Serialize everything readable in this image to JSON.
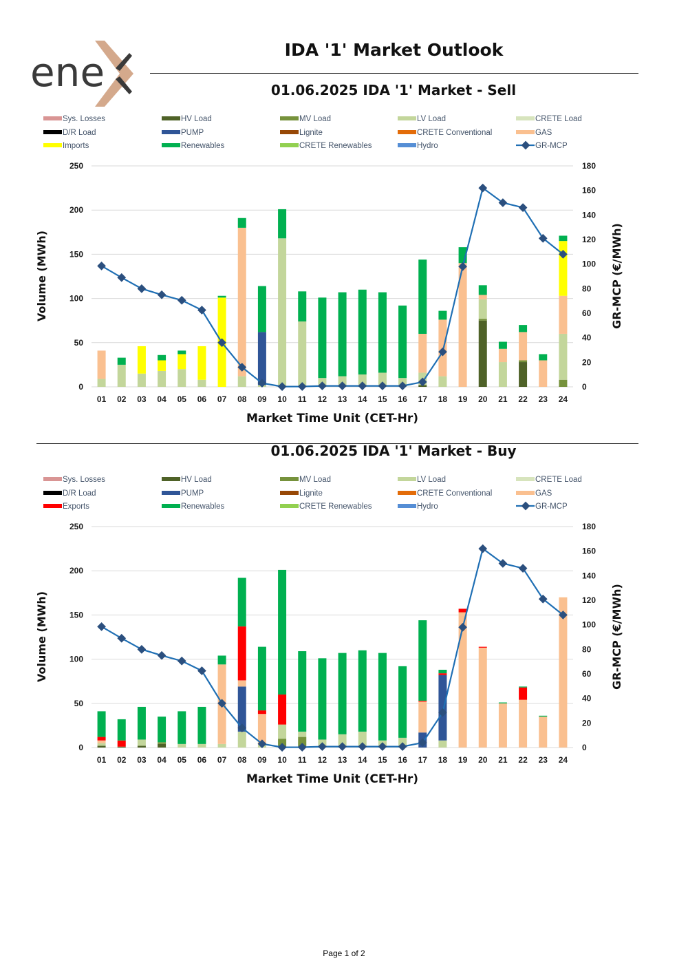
{
  "header": {
    "logo_text": "ene",
    "title": "IDA '1' Market Outlook"
  },
  "footer": {
    "page": "Page 1 of 2"
  },
  "legend_items": [
    {
      "key": "sys",
      "label": "Sys. Losses",
      "color": "#d99594"
    },
    {
      "key": "hv",
      "label": "HV Load",
      "color": "#4f6228"
    },
    {
      "key": "mv",
      "label": "MV Load",
      "color": "#76923c"
    },
    {
      "key": "lv",
      "label": "LV Load",
      "color": "#c3d69b"
    },
    {
      "key": "crete",
      "label": "CRETE Load",
      "color": "#d7e4bd"
    },
    {
      "key": "dr",
      "label": "D/R Load",
      "color": "#000000"
    },
    {
      "key": "pump",
      "label": "PUMP",
      "color": "#2f5597"
    },
    {
      "key": "lignite",
      "label": "Lignite",
      "color": "#974806"
    },
    {
      "key": "creteconv",
      "label": "CRETE Conventional",
      "color": "#e36c09"
    },
    {
      "key": "gas",
      "label": "GAS",
      "color": "#fac090"
    },
    {
      "key": "flow",
      "label": "Imports",
      "color": "#ffff00"
    },
    {
      "key": "ren",
      "label": "Renewables",
      "color": "#00b050"
    },
    {
      "key": "creteren",
      "label": "CRETE Renewables",
      "color": "#92d050"
    },
    {
      "key": "hydro",
      "label": "Hydro",
      "color": "#558ed5"
    },
    {
      "key": "mcp",
      "label": "GR-MCP",
      "color": "#1f6fb4"
    }
  ],
  "chart_data": [
    {
      "type": "bar",
      "title": "01.06.2025  IDA '1' Market - Sell",
      "xlabel": "Market Time Unit (CET-Hr)",
      "ylabel": "Volume (MWh)",
      "y2label": "GR-MCP (€/MWh)",
      "ylim": [
        0,
        250
      ],
      "y2lim": [
        0,
        180
      ],
      "yticks": [
        "0",
        "50",
        "100",
        "150",
        "200",
        "250"
      ],
      "y2ticks": [
        "0",
        "20",
        "40",
        "60",
        "80",
        "100",
        "120",
        "140",
        "160",
        "180"
      ],
      "flow_label": "Imports",
      "categories": [
        "01",
        "02",
        "03",
        "04",
        "05",
        "06",
        "07",
        "08",
        "09",
        "10",
        "11",
        "12",
        "13",
        "14",
        "15",
        "16",
        "17",
        "18",
        "19",
        "20",
        "21",
        "22",
        "23",
        "24"
      ],
      "series": [
        {
          "key": "hv",
          "name": "HV Load",
          "values": [
            0,
            0,
            0,
            0,
            0,
            0,
            0,
            0,
            0,
            0,
            0,
            0,
            0,
            0,
            0,
            0,
            2,
            0,
            0,
            75,
            0,
            28,
            0,
            0
          ]
        },
        {
          "key": "mv",
          "name": "MV Load",
          "values": [
            0,
            0,
            0,
            0,
            0,
            0,
            0,
            0,
            0,
            0,
            0,
            0,
            0,
            0,
            0,
            0,
            0,
            0,
            0,
            2,
            0,
            2,
            0,
            8
          ]
        },
        {
          "key": "lv",
          "name": "LV Load",
          "values": [
            9,
            25,
            15,
            18,
            20,
            8,
            0,
            12,
            2,
            168,
            74,
            10,
            12,
            14,
            16,
            10,
            14,
            12,
            0,
            22,
            28,
            0,
            0,
            52
          ]
        },
        {
          "key": "pump",
          "name": "PUMP",
          "values": [
            0,
            0,
            0,
            0,
            0,
            0,
            0,
            0,
            60,
            0,
            0,
            0,
            0,
            0,
            0,
            0,
            0,
            0,
            0,
            0,
            0,
            0,
            0,
            0
          ]
        },
        {
          "key": "gas",
          "name": "GAS",
          "values": [
            32,
            0,
            0,
            0,
            0,
            0,
            0,
            168,
            0,
            0,
            0,
            0,
            0,
            0,
            0,
            0,
            44,
            64,
            140,
            5,
            15,
            32,
            30,
            43
          ]
        },
        {
          "key": "flow",
          "name": "Imports",
          "values": [
            0,
            0,
            31,
            12,
            17,
            38,
            101,
            0,
            0,
            0,
            0,
            0,
            0,
            0,
            0,
            0,
            0,
            0,
            0,
            0,
            0,
            0,
            0,
            62
          ]
        },
        {
          "key": "ren",
          "name": "Renewables",
          "values": [
            0,
            8,
            0,
            6,
            4,
            0,
            2,
            11,
            52,
            33,
            34,
            91,
            95,
            96,
            91,
            82,
            84,
            10,
            18,
            11,
            8,
            8,
            7,
            6
          ]
        }
      ],
      "mcp": [
        98.5,
        89,
        80,
        75,
        70.5,
        62.5,
        36,
        16,
        3,
        0.2,
        0.3,
        0.8,
        0.8,
        0.8,
        0.8,
        0.8,
        4,
        28.5,
        98,
        162,
        150,
        146,
        121,
        108
      ]
    },
    {
      "type": "bar",
      "title": "01.06.2025  IDA '1' Market - Buy",
      "xlabel": "Market Time Unit (CET-Hr)",
      "ylabel": "Volume (MWh)",
      "y2label": "GR-MCP (€/MWh)",
      "ylim": [
        0,
        250
      ],
      "y2lim": [
        0,
        180
      ],
      "yticks": [
        "0",
        "50",
        "100",
        "150",
        "200",
        "250"
      ],
      "y2ticks": [
        "0",
        "20",
        "40",
        "60",
        "80",
        "100",
        "120",
        "140",
        "160",
        "180"
      ],
      "flow_label": "Exports",
      "categories": [
        "01",
        "02",
        "03",
        "04",
        "05",
        "06",
        "07",
        "08",
        "09",
        "10",
        "11",
        "12",
        "13",
        "14",
        "15",
        "16",
        "17",
        "18",
        "19",
        "20",
        "21",
        "22",
        "23",
        "24"
      ],
      "series": [
        {
          "key": "hv",
          "name": "HV Load",
          "values": [
            2,
            1,
            2,
            4,
            0,
            0,
            0,
            0,
            0,
            0,
            0,
            0,
            0,
            0,
            0,
            0,
            0,
            0,
            0,
            0,
            0,
            0,
            0,
            0
          ]
        },
        {
          "key": "mv",
          "name": "MV Load",
          "values": [
            0,
            0,
            0,
            2,
            0,
            0,
            0,
            0,
            0,
            10,
            12,
            0,
            0,
            0,
            0,
            0,
            0,
            0,
            0,
            0,
            0,
            0,
            0,
            0
          ]
        },
        {
          "key": "lv",
          "name": "LV Load",
          "values": [
            3,
            0,
            7,
            0,
            4,
            4,
            4,
            18,
            3,
            16,
            6,
            9,
            15,
            18,
            8,
            11,
            0,
            8,
            0,
            0,
            0,
            0,
            0,
            0
          ]
        },
        {
          "key": "pump",
          "name": "PUMP",
          "values": [
            0,
            0,
            0,
            0,
            0,
            0,
            0,
            51,
            0,
            0,
            0,
            0,
            0,
            0,
            0,
            0,
            17,
            74,
            0,
            0,
            0,
            0,
            0,
            0
          ]
        },
        {
          "key": "gas",
          "name": "GAS",
          "values": [
            3,
            0,
            0,
            0,
            0,
            0,
            90,
            7,
            35,
            0,
            0,
            0,
            0,
            0,
            0,
            0,
            35,
            0,
            153,
            113,
            50,
            54,
            35,
            170
          ]
        },
        {
          "key": "flow",
          "name": "Exports",
          "values": [
            4,
            7,
            0,
            0,
            0,
            0,
            0,
            61,
            4,
            34,
            0,
            0,
            0,
            0,
            0,
            0,
            1,
            2,
            4,
            1,
            0,
            14,
            0,
            0
          ]
        },
        {
          "key": "ren",
          "name": "Renewables",
          "values": [
            29,
            24,
            37,
            29,
            37,
            42,
            10,
            55,
            72,
            141,
            91,
            92,
            92,
            92,
            99,
            81,
            91,
            4,
            0,
            0,
            1,
            1,
            1,
            0
          ]
        }
      ],
      "mcp": [
        98.5,
        89,
        80,
        75,
        70.5,
        62.5,
        36,
        16,
        3,
        0.2,
        0.3,
        0.8,
        0.8,
        0.8,
        0.8,
        0.8,
        4,
        28.5,
        98,
        162,
        150,
        146,
        121,
        108
      ]
    }
  ]
}
